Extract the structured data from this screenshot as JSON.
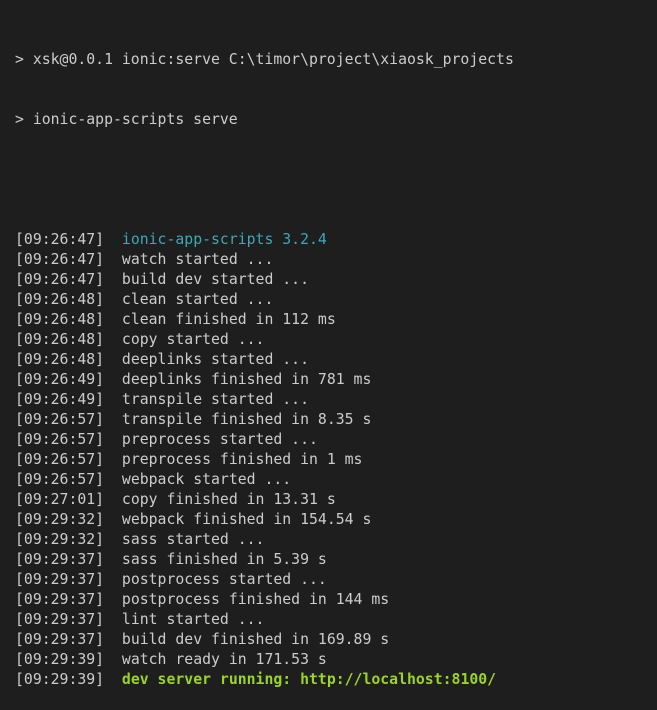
{
  "colors": {
    "background": "#1e1e1e",
    "text": "#cccccc",
    "version": "#3aa9b8",
    "server": "#9ad521"
  },
  "commands": [
    "> xsk@0.0.1 ionic:serve C:\\timor\\project\\xiaosk_projects",
    "> ionic-app-scripts serve"
  ],
  "log": [
    {
      "time": "[09:26:47]",
      "msg": "ionic-app-scripts 3.2.4",
      "style": "cyan"
    },
    {
      "time": "[09:26:47]",
      "msg": "watch started ..."
    },
    {
      "time": "[09:26:47]",
      "msg": "build dev started ..."
    },
    {
      "time": "[09:26:48]",
      "msg": "clean started ..."
    },
    {
      "time": "[09:26:48]",
      "msg": "clean finished in 112 ms"
    },
    {
      "time": "[09:26:48]",
      "msg": "copy started ..."
    },
    {
      "time": "[09:26:48]",
      "msg": "deeplinks started ..."
    },
    {
      "time": "[09:26:49]",
      "msg": "deeplinks finished in 781 ms"
    },
    {
      "time": "[09:26:49]",
      "msg": "transpile started ..."
    },
    {
      "time": "[09:26:57]",
      "msg": "transpile finished in 8.35 s"
    },
    {
      "time": "[09:26:57]",
      "msg": "preprocess started ..."
    },
    {
      "time": "[09:26:57]",
      "msg": "preprocess finished in 1 ms"
    },
    {
      "time": "[09:26:57]",
      "msg": "webpack started ..."
    },
    {
      "time": "[09:27:01]",
      "msg": "copy finished in 13.31 s"
    },
    {
      "time": "[09:29:32]",
      "msg": "webpack finished in 154.54 s"
    },
    {
      "time": "[09:29:32]",
      "msg": "sass started ..."
    },
    {
      "time": "[09:29:37]",
      "msg": "sass finished in 5.39 s"
    },
    {
      "time": "[09:29:37]",
      "msg": "postprocess started ..."
    },
    {
      "time": "[09:29:37]",
      "msg": "postprocess finished in 144 ms"
    },
    {
      "time": "[09:29:37]",
      "msg": "lint started ..."
    },
    {
      "time": "[09:29:37]",
      "msg": "build dev finished in 169.89 s"
    },
    {
      "time": "[09:29:39]",
      "msg": "watch ready in 171.53 s"
    },
    {
      "time": "[09:29:39]",
      "msg": "dev server running: http://localhost:8100/",
      "style": "green"
    }
  ]
}
